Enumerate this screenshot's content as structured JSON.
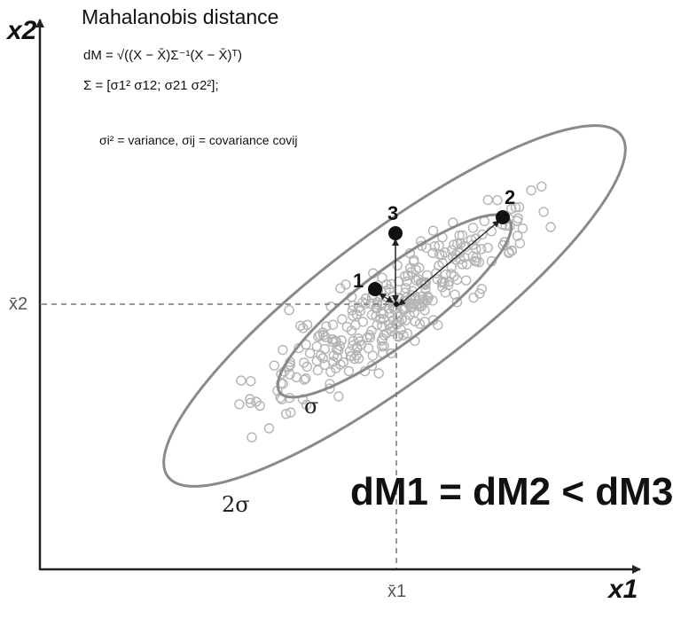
{
  "title": "Mahalanobis distance",
  "formula_distance": "dM = √((X − X̄)Σ⁻¹(X − X̄)ᵀ)",
  "formula_covariance_matrix": "Σ = [σ1²  σ12; σ21  σ2²];",
  "formula_legend": "σi² = variance, σij = covariance covij",
  "axis_x_label": "x1",
  "axis_y_label": "x2",
  "mean_x_label": "x̄1",
  "mean_y_label": "x̄2",
  "ellipse_inner_label": "σ",
  "ellipse_outer_label": "2σ",
  "point_labels": [
    "1",
    "2",
    "3"
  ],
  "result_text": "dM1 = dM2 < dM3",
  "colors": {
    "axis": "#222222",
    "ellipse": "#8a8a8a",
    "scatter": "#b4b4b4",
    "points": "#111111",
    "guides": "#777777"
  }
}
